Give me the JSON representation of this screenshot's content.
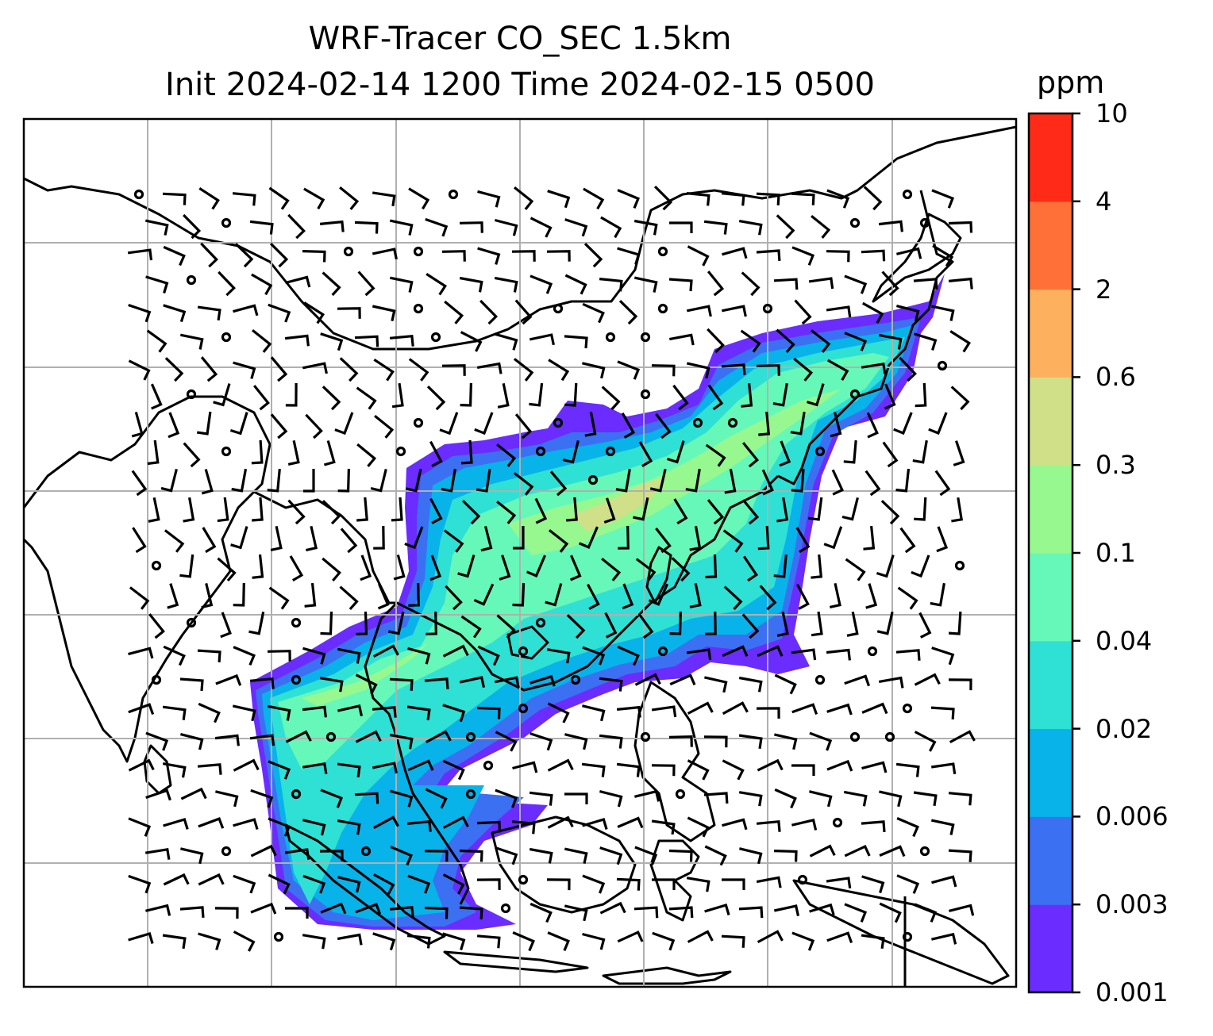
{
  "title_line1": "WRF-Tracer CO_SEC 1.5km",
  "title_line2": "Init 2024-02-14 1200 Time 2024-02-15 0500",
  "colorbar": {
    "unit": "ppm",
    "levels": [
      "0.001",
      "0.003",
      "0.006",
      "0.02",
      "0.04",
      "0.1",
      "0.3",
      "0.6",
      "2",
      "4",
      "10"
    ],
    "colors": [
      "#6a2cff",
      "#3c70f2",
      "#08b3ea",
      "#2fe0d5",
      "#66f8b8",
      "#96f88f",
      "#cfe089",
      "#fdb05d",
      "#ff7038",
      "#ff2a17"
    ]
  }
}
